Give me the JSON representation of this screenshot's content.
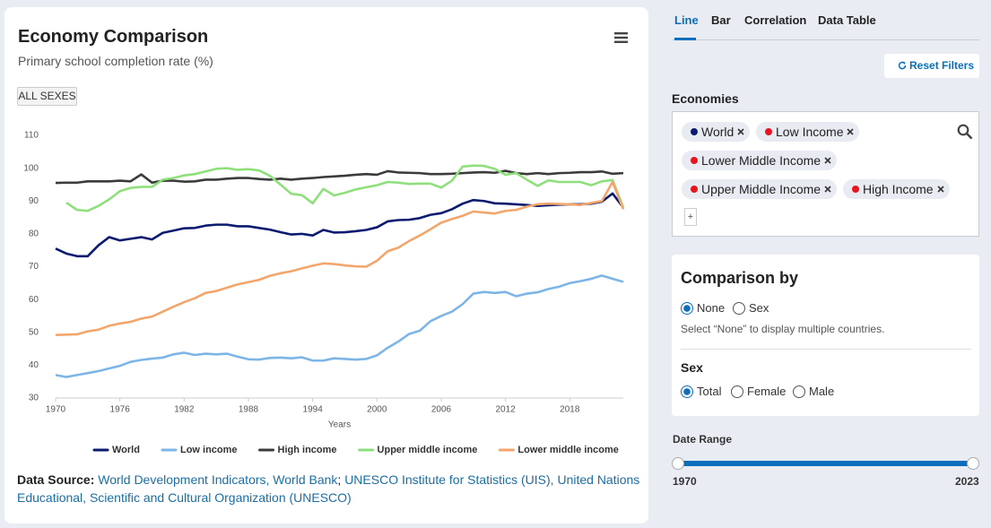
{
  "card": {
    "title": "Economy Comparison",
    "subtitle": "Primary school completion rate (%)",
    "filter_button": "ALL SEXES",
    "source": {
      "label": "Data Source:",
      "links": [
        "World Development Indicators, World Bank",
        "UNESCO Institute for Statistics (UIS), United Nations Educational, Scientific and Cultural Organization (UNESCO)"
      ],
      "separator": ";"
    }
  },
  "chart_data": {
    "type": "line",
    "x_label": "Years",
    "x": [
      1970,
      1971,
      1972,
      1973,
      1974,
      1975,
      1976,
      1977,
      1978,
      1979,
      1980,
      1981,
      1982,
      1983,
      1984,
      1985,
      1986,
      1987,
      1988,
      1989,
      1990,
      1991,
      1992,
      1993,
      1994,
      1995,
      1996,
      1997,
      1998,
      1999,
      2000,
      2001,
      2002,
      2003,
      2004,
      2005,
      2006,
      2007,
      2008,
      2009,
      2010,
      2011,
      2012,
      2013,
      2014,
      2015,
      2016,
      2017,
      2018,
      2019,
      2020,
      2021,
      2022,
      2023
    ],
    "xlim": [
      1970,
      2023
    ],
    "xticks": [
      1970,
      1976,
      1982,
      1988,
      1994,
      2000,
      2006,
      2012,
      2018
    ],
    "ylim": [
      30,
      110
    ],
    "yticks": [
      30,
      40,
      50,
      60,
      70,
      80,
      90,
      100,
      110
    ],
    "grid": false,
    "legend": "bottom",
    "series": [
      {
        "name": "World",
        "color": "#0b1b6f",
        "values": [
          75.5,
          74,
          73.2,
          73.2,
          76.5,
          79,
          78,
          78.5,
          79,
          78.3,
          80.3,
          81,
          81.7,
          81.8,
          82.5,
          82.8,
          82.8,
          82.3,
          82.3,
          81.8,
          81.3,
          80.5,
          79.8,
          80,
          79.5,
          81.2,
          80.4,
          80.5,
          80.8,
          81.2,
          82,
          83.8,
          84.2,
          84.3,
          84.8,
          85.8,
          86.3,
          87.5,
          89.2,
          90.3,
          90,
          89.3,
          89.2,
          89,
          88.8,
          88.5,
          88.7,
          88.9,
          89,
          89,
          89.2,
          89.8,
          92.3,
          88
        ]
      },
      {
        "name": "Low income",
        "color": "#7db6e6",
        "values": [
          37,
          36.4,
          37,
          37.6,
          38.2,
          39,
          39.8,
          41,
          41.6,
          42,
          42.3,
          43.3,
          43.8,
          43.1,
          43.5,
          43.3,
          43.5,
          42.6,
          41.8,
          41.7,
          42.2,
          42.3,
          42.1,
          42.4,
          41.4,
          41.4,
          42.1,
          41.9,
          41.7,
          41.9,
          43,
          45.3,
          47.2,
          49.5,
          50.5,
          53.4,
          55,
          56.3,
          58.6,
          61.8,
          62.3,
          62,
          62.3,
          61,
          61.8,
          62.2,
          63.2,
          63.9,
          65,
          65.6,
          66.3,
          67.3,
          66.3,
          65.4
        ]
      },
      {
        "name": "High income",
        "color": "#3b3b3b",
        "values": [
          95.5,
          95.6,
          95.6,
          96,
          96,
          96,
          96.2,
          96,
          98.1,
          95.6,
          96.2,
          96.2,
          95.9,
          96,
          96.5,
          96.5,
          96.8,
          97,
          97,
          96.7,
          96.5,
          96.8,
          96.5,
          96.8,
          97,
          97.3,
          97.5,
          97.7,
          98,
          98.2,
          98,
          99.1,
          98.7,
          98.6,
          98.5,
          98.2,
          98.2,
          98.3,
          98.5,
          98.7,
          98.8,
          98.6,
          99.2,
          98.5,
          98.2,
          98.5,
          98.2,
          98.5,
          98.6,
          98.8,
          98.8,
          99,
          98.3,
          98.5
        ]
      },
      {
        "name": "Upper middle income",
        "color": "#8fe07c",
        "values": [
          null,
          89.5,
          87.3,
          87,
          88.5,
          90.5,
          93,
          94,
          94.3,
          94.3,
          96.5,
          97,
          97.8,
          98.2,
          99,
          99.8,
          100,
          99.5,
          99.7,
          99.3,
          97.7,
          95,
          92.2,
          91.8,
          89.3,
          93.7,
          91.7,
          92.5,
          93.5,
          94.2,
          94.8,
          95.8,
          95.6,
          95.2,
          95.3,
          95.3,
          94.1,
          96.2,
          100.5,
          100.8,
          100.7,
          99.8,
          98,
          98.5,
          96.5,
          94.6,
          96.3,
          95.8,
          95.8,
          95.8,
          94.8,
          96,
          96.4,
          88
        ]
      },
      {
        "name": "Lower middle income",
        "color": "#f2a66b",
        "values": [
          49.2,
          49.3,
          49.4,
          50.3,
          50.8,
          52,
          52.7,
          53.2,
          54.2,
          54.8,
          56.3,
          57.8,
          59.2,
          60.4,
          62,
          62.6,
          63.6,
          64.6,
          65.3,
          66,
          67.2,
          68,
          68.6,
          69.5,
          70.3,
          71,
          70.8,
          70.4,
          70.1,
          70,
          71.8,
          74.7,
          75.8,
          77.8,
          79.5,
          81.4,
          83.4,
          84.5,
          85.5,
          86.8,
          86.5,
          86.2,
          87,
          87.3,
          88.3,
          89,
          89.2,
          89.1,
          89,
          88.8,
          89.4,
          90,
          95.8,
          87.5
        ]
      }
    ]
  },
  "panel": {
    "tabs": [
      "Line",
      "Bar",
      "Correlation",
      "Data Table"
    ],
    "reset": "Reset Filters",
    "economies_label": "Economies",
    "chips": [
      {
        "name": "World",
        "color": "#0b1b6f"
      },
      {
        "name": "Low Income",
        "color": "#e8141e"
      },
      {
        "name": "Lower Middle Income",
        "color": "#e8141e"
      },
      {
        "name": "Upper Middle Income",
        "color": "#e8141e"
      },
      {
        "name": "High Income",
        "color": "#e8141e"
      }
    ],
    "add_label": "+",
    "comparison": {
      "title": "Comparison by",
      "options": [
        "None",
        "Sex"
      ],
      "note": "Select “None” to display multiple countries."
    },
    "sex": {
      "title": "Sex",
      "options": [
        "Total",
        "Female",
        "Male"
      ]
    },
    "date_range": {
      "title": "Date Range",
      "min": 1970,
      "max": 2023
    }
  }
}
